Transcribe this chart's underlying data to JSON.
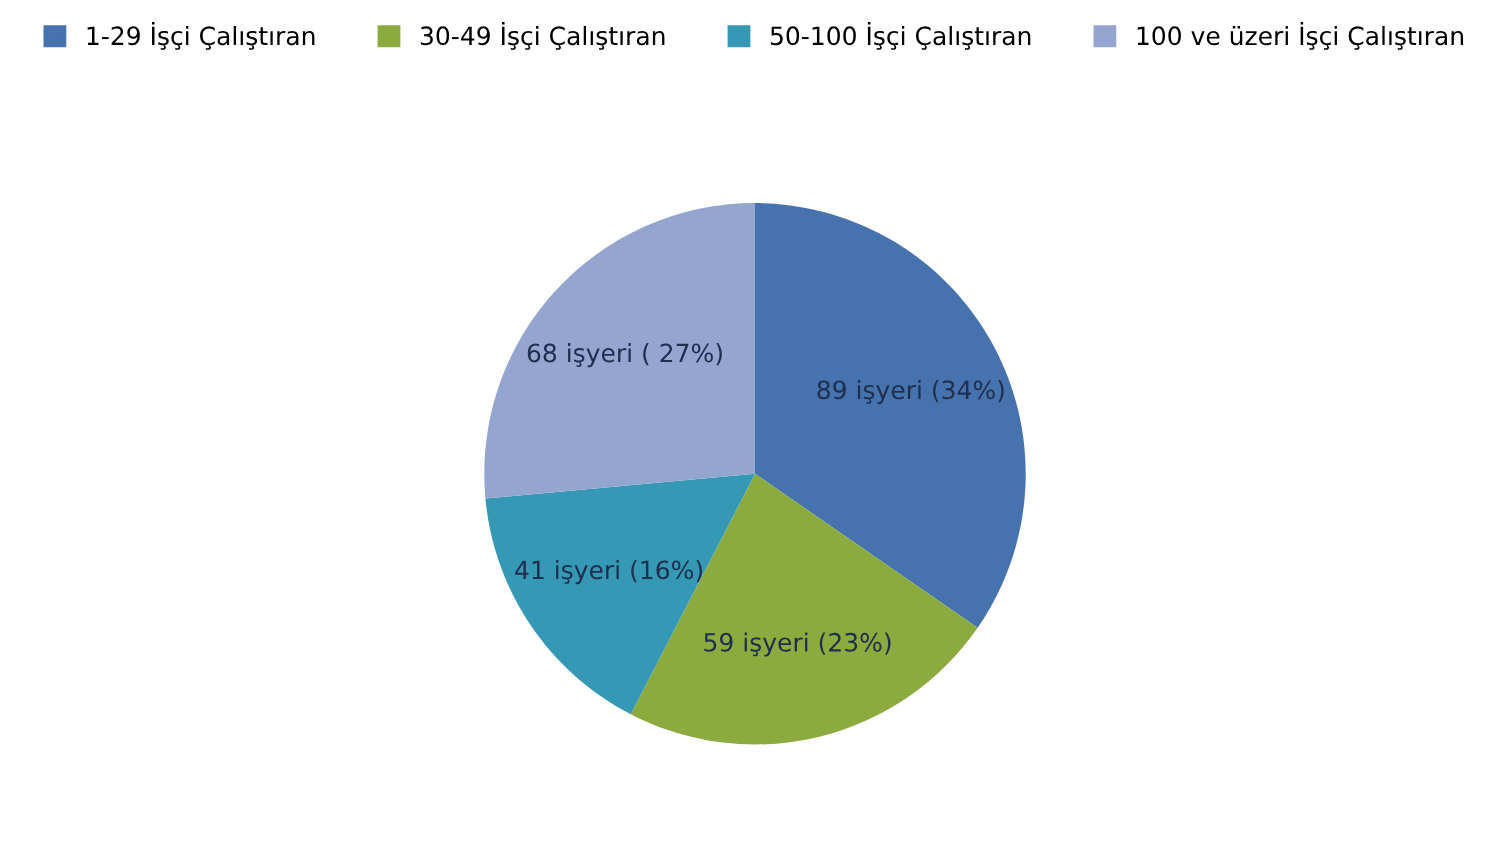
{
  "chart_data": {
    "type": "pie",
    "categories": [
      "1-29 İşçi Çalıştıran",
      "30-49 İşçi Çalıştıran",
      "50-100 İşçi Çalıştıran",
      "100 ve üzeri İşçi Çalıştıran"
    ],
    "values": [
      89,
      59,
      41,
      68
    ],
    "colors": [
      "#4672ad",
      "#8cab3e",
      "#3598b5",
      "#94a6d0"
    ],
    "value_labels": [
      "89 işyeri (34%)",
      "59 işyeri (23%)",
      "41 işyeri (16%)",
      "68 işyeri ( 27%)"
    ],
    "legend": "top"
  }
}
